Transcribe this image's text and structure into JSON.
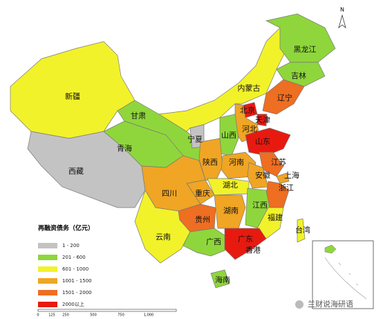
{
  "title": "再融资债务（亿元）",
  "legend": [
    {
      "label": "1 - 200",
      "color": "#c3c3c3"
    },
    {
      "label": "201 - 600",
      "color": "#8fd63c"
    },
    {
      "label": "601 - 1000",
      "color": "#f2f22a"
    },
    {
      "label": "1001 - 1500",
      "color": "#f0a524"
    },
    {
      "label": "1501 - 2000",
      "color": "#ee6e22"
    },
    {
      "label": "2000以上",
      "color": "#e81a10"
    }
  ],
  "provinces": [
    {
      "name": "新疆",
      "color": "#f2f22a"
    },
    {
      "name": "西藏",
      "color": "#c3c3c3"
    },
    {
      "name": "青海",
      "color": "#8fd63c"
    },
    {
      "name": "甘肃",
      "color": "#8fd63c"
    },
    {
      "name": "宁夏",
      "color": "#c3c3c3"
    },
    {
      "name": "内蒙古",
      "color": "#f2f22a"
    },
    {
      "name": "黑龙江",
      "color": "#8fd63c"
    },
    {
      "name": "吉林",
      "color": "#8fd63c"
    },
    {
      "name": "辽宁",
      "color": "#ee6e22"
    },
    {
      "name": "北京",
      "color": "#e81a10"
    },
    {
      "name": "天津",
      "color": "#e81a10"
    },
    {
      "name": "河北",
      "color": "#f0a524"
    },
    {
      "name": "山西",
      "color": "#8fd63c"
    },
    {
      "name": "山东",
      "color": "#e81a10"
    },
    {
      "name": "陕西",
      "color": "#f0a524"
    },
    {
      "name": "河南",
      "color": "#f0a524"
    },
    {
      "name": "江苏",
      "color": "#ee6e22"
    },
    {
      "name": "安徽",
      "color": "#f0a524"
    },
    {
      "name": "上海",
      "color": "#f0a524"
    },
    {
      "name": "浙江",
      "color": "#ee6e22"
    },
    {
      "name": "湖北",
      "color": "#f2f22a"
    },
    {
      "name": "重庆",
      "color": "#f0a524"
    },
    {
      "name": "四川",
      "color": "#f0a524"
    },
    {
      "name": "贵州",
      "color": "#ee6e22"
    },
    {
      "name": "湖南",
      "color": "#f0a524"
    },
    {
      "name": "江西",
      "color": "#8fd63c"
    },
    {
      "name": "福建",
      "color": "#f2f22a"
    },
    {
      "name": "云南",
      "color": "#f2f22a"
    },
    {
      "name": "广西",
      "color": "#8fd63c"
    },
    {
      "name": "广东",
      "color": "#e81a10"
    },
    {
      "name": "海南",
      "color": "#8fd63c"
    },
    {
      "name": "台湾",
      "color": "#f2f22a"
    }
  ],
  "hongkong": "香港",
  "north": "N",
  "scale_labels": [
    "0",
    "125",
    "250",
    "500",
    "750",
    "1,000"
  ],
  "watermark": "兰财说海研语"
}
